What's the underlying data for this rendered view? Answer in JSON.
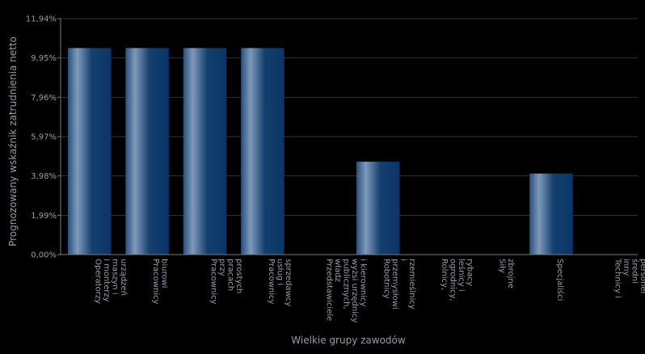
{
  "chart_data": {
    "type": "bar",
    "title": "",
    "xlabel": "Wielkie grupy zawodów",
    "ylabel": "Prognozowany wskaźnik zatrudnienia netto",
    "ylim": [
      0,
      11.94
    ],
    "yticks": [
      "0,00%",
      "1,99%",
      "3,98%",
      "5,97%",
      "7,96%",
      "9,95%",
      "11,94%"
    ],
    "grid": true,
    "legend": "none",
    "categories": [
      [
        "Operatorzy",
        "i monterzy",
        "maszyn i",
        "urządzeń"
      ],
      [
        "Pracownicy",
        "biurowi"
      ],
      [
        "Pracownicy",
        "przy",
        "pracach",
        "prostych"
      ],
      [
        "Pracownicy",
        "usług i",
        "sprzedawcy"
      ],
      [
        "Przedstawiciele",
        "władz",
        "publicznych,",
        "wyżsi urzędnicy",
        "i kierownicy"
      ],
      [
        "Robotnicy",
        "przemysłowi",
        "i",
        "rzemieślnicy"
      ],
      [
        "Rolnicy,",
        "ogrodnicy,",
        "leśnicy i",
        "rybacy"
      ],
      [
        "Siły",
        "zbrojne"
      ],
      [
        "Specjaliści"
      ],
      [
        "Technicy i",
        "inny",
        "średni",
        "personel"
      ]
    ],
    "values": [
      10.45,
      10.45,
      10.45,
      10.45,
      0,
      4.7,
      0,
      0,
      4.1,
      0
    ],
    "colors": {
      "background": "#000000",
      "grid": "#333333",
      "axis": "#777777",
      "text": "#9a9aaa",
      "bar_dark": "#0a3568",
      "bar_light": "#7f99bb"
    }
  }
}
